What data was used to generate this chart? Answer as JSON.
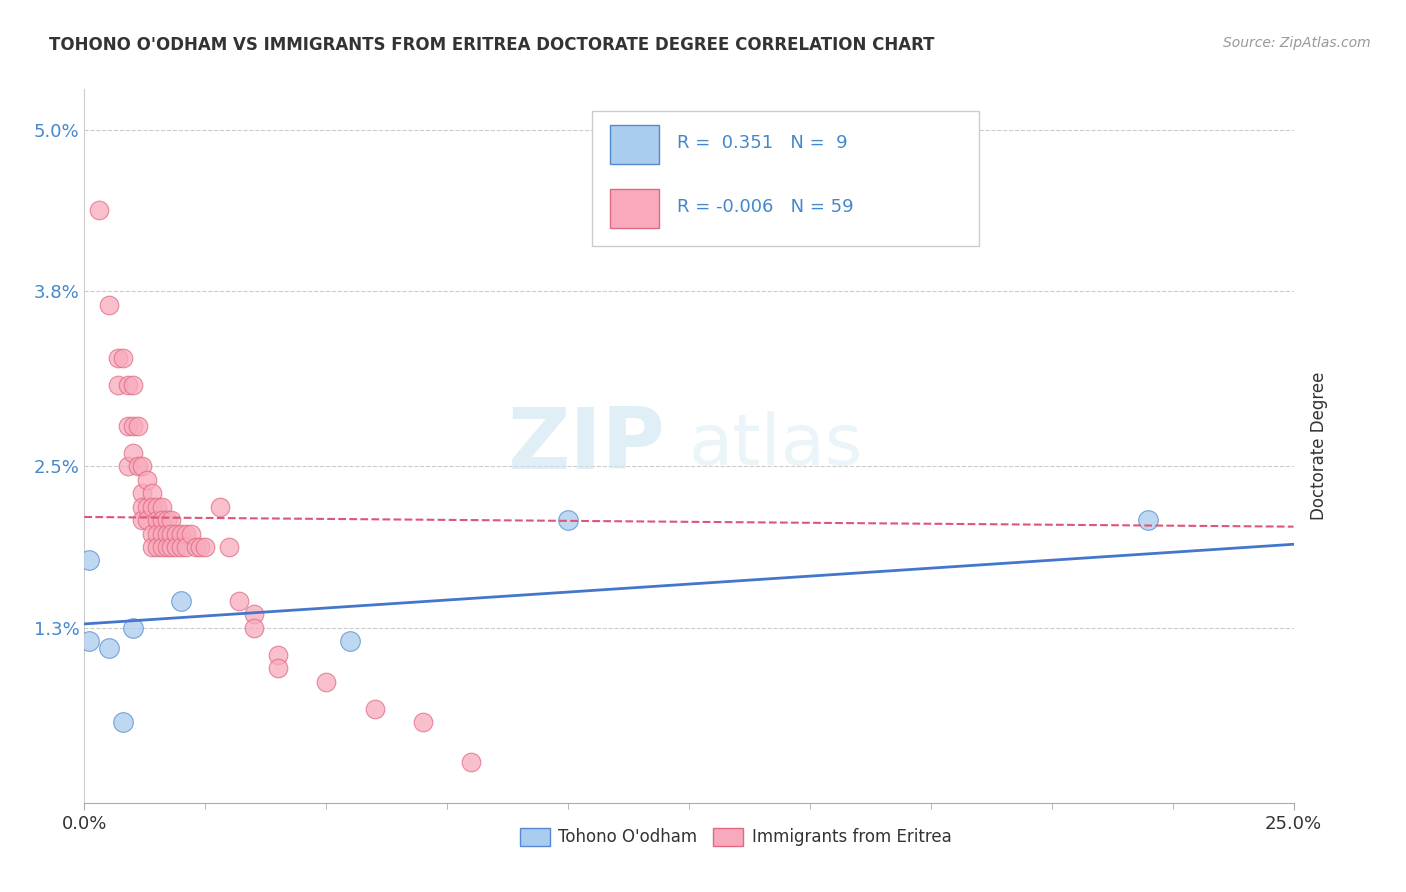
{
  "title": "TOHONO O'ODHAM VS IMMIGRANTS FROM ERITREA DOCTORATE DEGREE CORRELATION CHART",
  "source_text": "Source: ZipAtlas.com",
  "ylabel": "Doctorate Degree",
  "xlim": [
    0.0,
    0.25
  ],
  "ylim": [
    0.0,
    0.053
  ],
  "ytick_vals": [
    0.013,
    0.025,
    0.038,
    0.05
  ],
  "ytick_labels": [
    "1.3%",
    "2.5%",
    "3.8%",
    "5.0%"
  ],
  "xtick_vals": [
    0.0,
    0.25
  ],
  "xtick_labels": [
    "0.0%",
    "25.0%"
  ],
  "grid_color": "#cccccc",
  "background_color": "#ffffff",
  "blue_fill": "#aaccee",
  "blue_edge": "#5588cc",
  "pink_fill": "#f8aabc",
  "pink_edge": "#e06880",
  "blue_line_color": "#4477cc",
  "pink_line_color": "#dd5577",
  "legend_R_blue": "0.351",
  "legend_N_blue": "9",
  "legend_R_pink": "-0.006",
  "legend_N_pink": "59",
  "legend_label_blue": "Tohono O'odham",
  "legend_label_pink": "Immigrants from Eritrea",
  "watermark_zip": "ZIP",
  "watermark_atlas": "atlas",
  "blue_points_x": [
    0.001,
    0.001,
    0.005,
    0.008,
    0.01,
    0.02,
    0.055,
    0.1,
    0.22
  ],
  "blue_points_y": [
    0.012,
    0.018,
    0.0115,
    0.006,
    0.013,
    0.015,
    0.012,
    0.021,
    0.021
  ],
  "pink_points_x": [
    0.003,
    0.005,
    0.007,
    0.007,
    0.008,
    0.009,
    0.009,
    0.009,
    0.01,
    0.01,
    0.01,
    0.011,
    0.011,
    0.012,
    0.012,
    0.012,
    0.012,
    0.013,
    0.013,
    0.013,
    0.014,
    0.014,
    0.014,
    0.014,
    0.015,
    0.015,
    0.015,
    0.015,
    0.016,
    0.016,
    0.016,
    0.016,
    0.017,
    0.017,
    0.017,
    0.018,
    0.018,
    0.018,
    0.019,
    0.019,
    0.02,
    0.02,
    0.021,
    0.021,
    0.022,
    0.023,
    0.024,
    0.025,
    0.028,
    0.03,
    0.032,
    0.035,
    0.035,
    0.04,
    0.04,
    0.05,
    0.06,
    0.07,
    0.08
  ],
  "pink_points_y": [
    0.044,
    0.037,
    0.033,
    0.031,
    0.033,
    0.031,
    0.028,
    0.025,
    0.031,
    0.028,
    0.026,
    0.028,
    0.025,
    0.025,
    0.023,
    0.022,
    0.021,
    0.024,
    0.022,
    0.021,
    0.023,
    0.022,
    0.02,
    0.019,
    0.022,
    0.021,
    0.02,
    0.019,
    0.022,
    0.021,
    0.02,
    0.019,
    0.021,
    0.02,
    0.019,
    0.021,
    0.02,
    0.019,
    0.02,
    0.019,
    0.02,
    0.019,
    0.02,
    0.019,
    0.02,
    0.019,
    0.019,
    0.019,
    0.022,
    0.019,
    0.015,
    0.014,
    0.013,
    0.011,
    0.01,
    0.009,
    0.007,
    0.006,
    0.003
  ]
}
